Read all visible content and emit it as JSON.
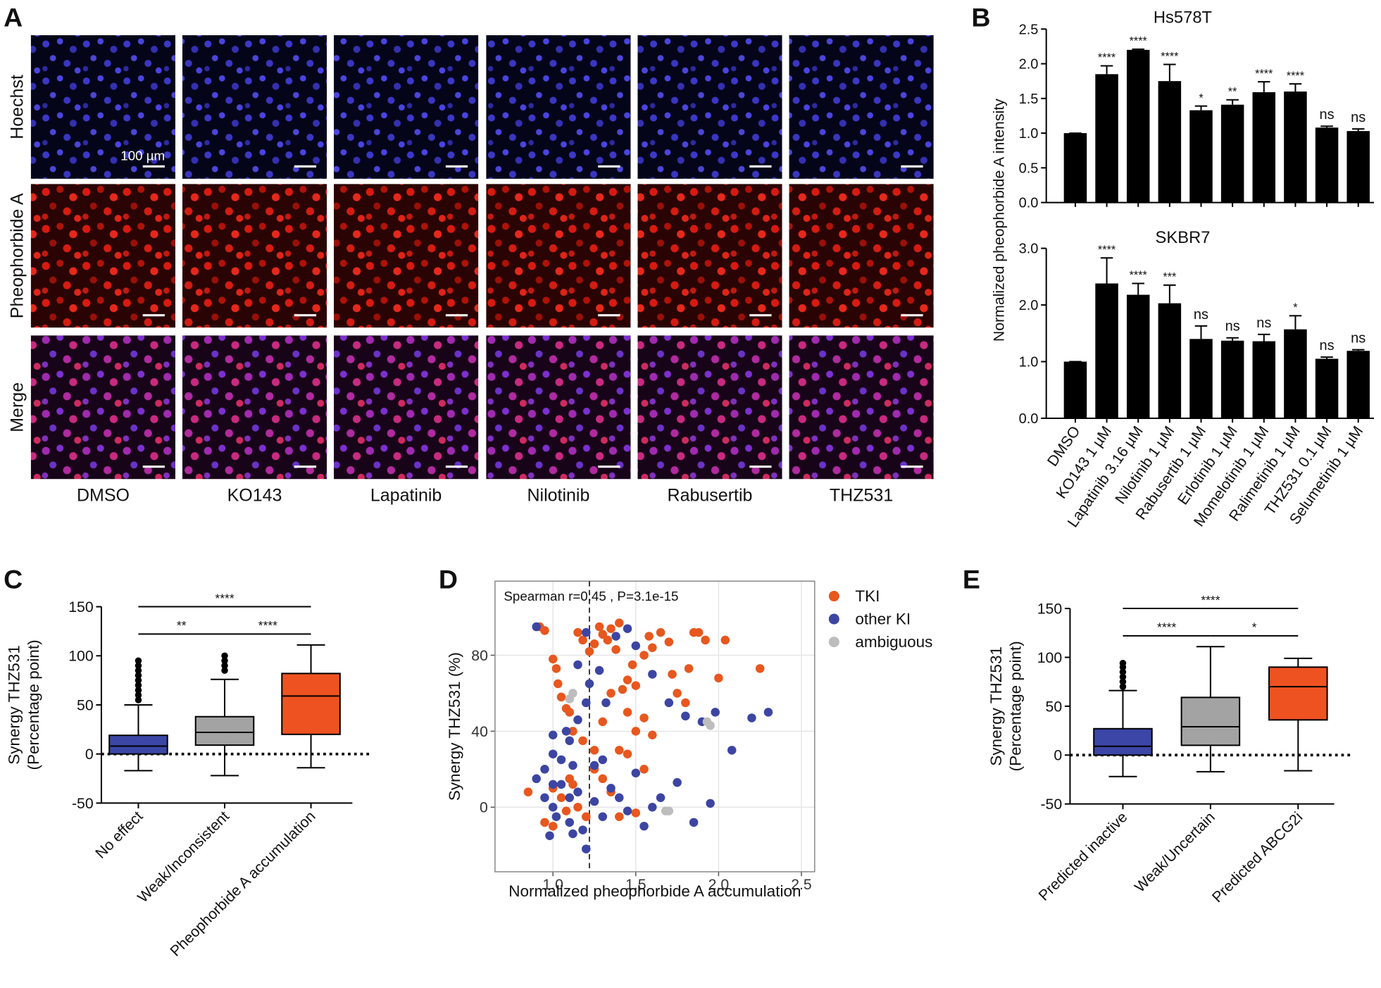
{
  "panel_a": {
    "panel": "A",
    "rows": [
      "Hoechst",
      "Pheophorbide A",
      "Merge"
    ],
    "columns": [
      "DMSO",
      "KO143",
      "Lapatinib",
      "Nilotinib",
      "Rabusertib",
      "THZ531"
    ],
    "scale_bar": "100 µm"
  },
  "chart_data": [
    {
      "type": "bar",
      "panel": "B",
      "title": "Hs578T",
      "ylabel": "Normalized pheophorbide A intensity",
      "color": "#000000",
      "values": [
        1.0,
        1.85,
        2.2,
        1.75,
        1.33,
        1.41,
        1.59,
        1.6,
        1.08,
        1.03
      ],
      "errors": [
        0,
        0.12,
        0.01,
        0.24,
        0.06,
        0.07,
        0.15,
        0.11,
        0.02,
        0.03
      ],
      "annotations": [
        null,
        "****",
        "****",
        "****",
        "*",
        "**",
        "****",
        "****",
        "ns",
        "ns"
      ],
      "ylim": [
        0,
        2.5
      ],
      "yticks": [
        {
          "value": 0,
          "label": "0.0"
        },
        0.5,
        {
          "value": 1,
          "label": "1.0"
        },
        1.5,
        {
          "value": 2,
          "label": "2.0"
        },
        2.5
      ]
    },
    {
      "type": "bar",
      "title": "SKBR7",
      "color": "#000000",
      "categories": [
        "DMSO",
        "KO143 1 µM",
        "Lapatinib 3.16 µM",
        "Nilotinib 1 µM",
        "Rabusertib 1 µM",
        "Erlotinib 1 µM",
        "Momelotinib 1 µM",
        "Ralimetinib 1 µM",
        "THZ531 0.1 µM",
        "Selumetinib 1 µM"
      ],
      "values": [
        1.0,
        2.38,
        2.18,
        2.03,
        1.4,
        1.37,
        1.36,
        1.57,
        1.05,
        1.19
      ],
      "errors": [
        0,
        0.45,
        0.2,
        0.32,
        0.23,
        0.05,
        0.12,
        0.24,
        0.03,
        0.02
      ],
      "annotations": [
        null,
        "****",
        "****",
        "***",
        "ns",
        "ns",
        "ns",
        "*",
        "ns",
        "ns"
      ],
      "ylim": [
        0,
        3
      ],
      "yticks": [
        {
          "value": 0,
          "label": "0.0"
        },
        {
          "value": 1,
          "label": "1.0"
        },
        {
          "value": 2,
          "label": "2.0"
        },
        {
          "value": 3,
          "label": "3.0"
        }
      ]
    },
    {
      "type": "box",
      "panel": "C",
      "ylabel": [
        "Synergy THZ531",
        "(Percentage point)"
      ],
      "categories": [
        "No effect",
        "Weak/Inconsistent",
        "Pheophorbide A accumulation"
      ],
      "colors": [
        "#3b46a6",
        "#a3a3a3",
        "#ee5220"
      ],
      "boxes": [
        {
          "min": -17,
          "q1": 0,
          "median": 8,
          "q3": 19,
          "max": 50,
          "outliers": [
            55,
            60,
            65,
            70,
            75,
            80,
            85,
            90,
            95
          ]
        },
        {
          "min": -22,
          "q1": 9,
          "median": 22,
          "q3": 38,
          "max": 76,
          "outliers": [
            85,
            90,
            95,
            100
          ]
        },
        {
          "min": -14,
          "q1": 20,
          "median": 59,
          "q3": 82,
          "max": 111,
          "outliers": []
        }
      ],
      "comparisons": [
        "**",
        "****",
        "****"
      ],
      "ylim": [
        -50,
        150
      ],
      "yticks": [
        -50,
        0,
        50,
        100,
        150
      ]
    },
    {
      "type": "scatter",
      "panel": "D",
      "xlabel": "Normalized pheophorbide A accumulation",
      "ylabel": "Synergy THZ531 (%)",
      "annotation": "Spearman r=0.45 , P=3.1e-15",
      "threshold_x": 1.22,
      "grid": true,
      "legend": "right",
      "series": [
        {
          "name": "TKI",
          "color": "#e8571e",
          "x": [
            0.85,
            0.92,
            0.95,
            1.0,
            1.02,
            1.03,
            1.05,
            1.08,
            1.1,
            1.12,
            1.15,
            1.18,
            1.22,
            1.25,
            1.28,
            1.3,
            1.33,
            1.35,
            1.38,
            1.4,
            1.42,
            1.45,
            1.48,
            1.5,
            1.55,
            1.58,
            1.6,
            1.65,
            1.7,
            1.72,
            1.75,
            1.8,
            1.82,
            1.85,
            1.88,
            1.92,
            2.0,
            2.04,
            2.25,
            1.0,
            1.05,
            1.08,
            1.1,
            1.12,
            1.15,
            1.2,
            1.25,
            1.3,
            1.35,
            1.4,
            1.45,
            1.5,
            1.55,
            0.95,
            1.0,
            1.18,
            1.3,
            1.4,
            1.5,
            1.6,
            1.25,
            1.35,
            1.45,
            1.55
          ],
          "values": [
            8,
            95,
            93,
            78,
            73,
            65,
            58,
            52,
            50,
            40,
            92,
            88,
            82,
            86,
            95,
            91,
            88,
            94,
            83,
            97,
            62,
            67,
            75,
            64,
            80,
            90,
            84,
            92,
            87,
            70,
            60,
            55,
            73,
            92,
            92,
            88,
            68,
            88,
            73,
            10,
            5,
            -2,
            15,
            12,
            0,
            -5,
            20,
            15,
            8,
            -5,
            28,
            -3,
            20,
            -8,
            -10,
            35,
            45,
            30,
            40,
            38,
            30,
            60,
            50,
            47
          ]
        },
        {
          "name": "other KI",
          "color": "#3d45a3",
          "x": [
            0.9,
            0.95,
            1.0,
            1.05,
            1.1,
            1.15,
            1.2,
            1.22,
            1.28,
            1.32,
            1.38,
            1.45,
            1.5,
            1.6,
            1.7,
            1.8,
            1.9,
            1.98,
            2.08,
            2.2,
            2.3,
            0.9,
            0.95,
            1.0,
            1.02,
            1.05,
            1.1,
            1.12,
            1.15,
            1.18,
            1.2,
            1.25,
            1.3,
            1.35,
            1.4,
            1.45,
            1.5,
            1.55,
            1.6,
            1.65,
            1.75,
            1.85,
            1.95,
            1.0,
            1.08,
            1.15,
            1.2,
            1.25,
            1.3,
            1.1,
            1.0,
            0.98,
            1.12
          ],
          "values": [
            95,
            20,
            38,
            25,
            35,
            75,
            92,
            65,
            72,
            55,
            90,
            94,
            85,
            70,
            55,
            48,
            45,
            50,
            30,
            47,
            50,
            15,
            5,
            0,
            -5,
            12,
            -8,
            22,
            8,
            -12,
            -22,
            3,
            -5,
            10,
            5,
            -2,
            18,
            -10,
            0,
            5,
            13,
            -8,
            2,
            28,
            40,
            46,
            55,
            22,
            25,
            5,
            12,
            -15,
            -14
          ]
        },
        {
          "name": "ambiguous",
          "color": "#bdbdbd",
          "x": [
            1.1,
            1.12,
            1.7,
            1.93,
            1.95,
            1.68
          ],
          "values": [
            57,
            60,
            -2,
            45,
            43,
            -2
          ]
        }
      ],
      "xlim": [
        0.65,
        2.58
      ],
      "xticks": [
        {
          "value": 1,
          "label": "1.0"
        },
        1.5,
        {
          "value": 2,
          "label": "2.0"
        },
        2.5
      ],
      "ylim": [
        -34,
        119
      ],
      "yticks": [
        0,
        40,
        80
      ]
    },
    {
      "type": "box",
      "panel": "E",
      "ylabel": [
        "Synergy THZ531",
        "(Percentage point)"
      ],
      "categories": [
        "Predicted inactive",
        "Weak/Uncertain",
        "Predicted ABCG2i"
      ],
      "colors": [
        "#3b46a6",
        "#a3a3a3",
        "#ee5220"
      ],
      "boxes": [
        {
          "min": -22,
          "q1": 0,
          "median": 9,
          "q3": 27,
          "max": 66,
          "outliers": [
            70,
            75,
            80,
            85,
            90,
            94
          ]
        },
        {
          "min": -17,
          "q1": 10,
          "median": 29,
          "q3": 59,
          "max": 111,
          "outliers": []
        },
        {
          "min": -16,
          "q1": 36,
          "median": 70,
          "q3": 90,
          "max": 99,
          "outliers": []
        }
      ],
      "comparisons": [
        "****",
        "*",
        "****"
      ],
      "ylim": [
        -50,
        150
      ],
      "yticks": [
        -50,
        0,
        50,
        100,
        150
      ]
    }
  ]
}
